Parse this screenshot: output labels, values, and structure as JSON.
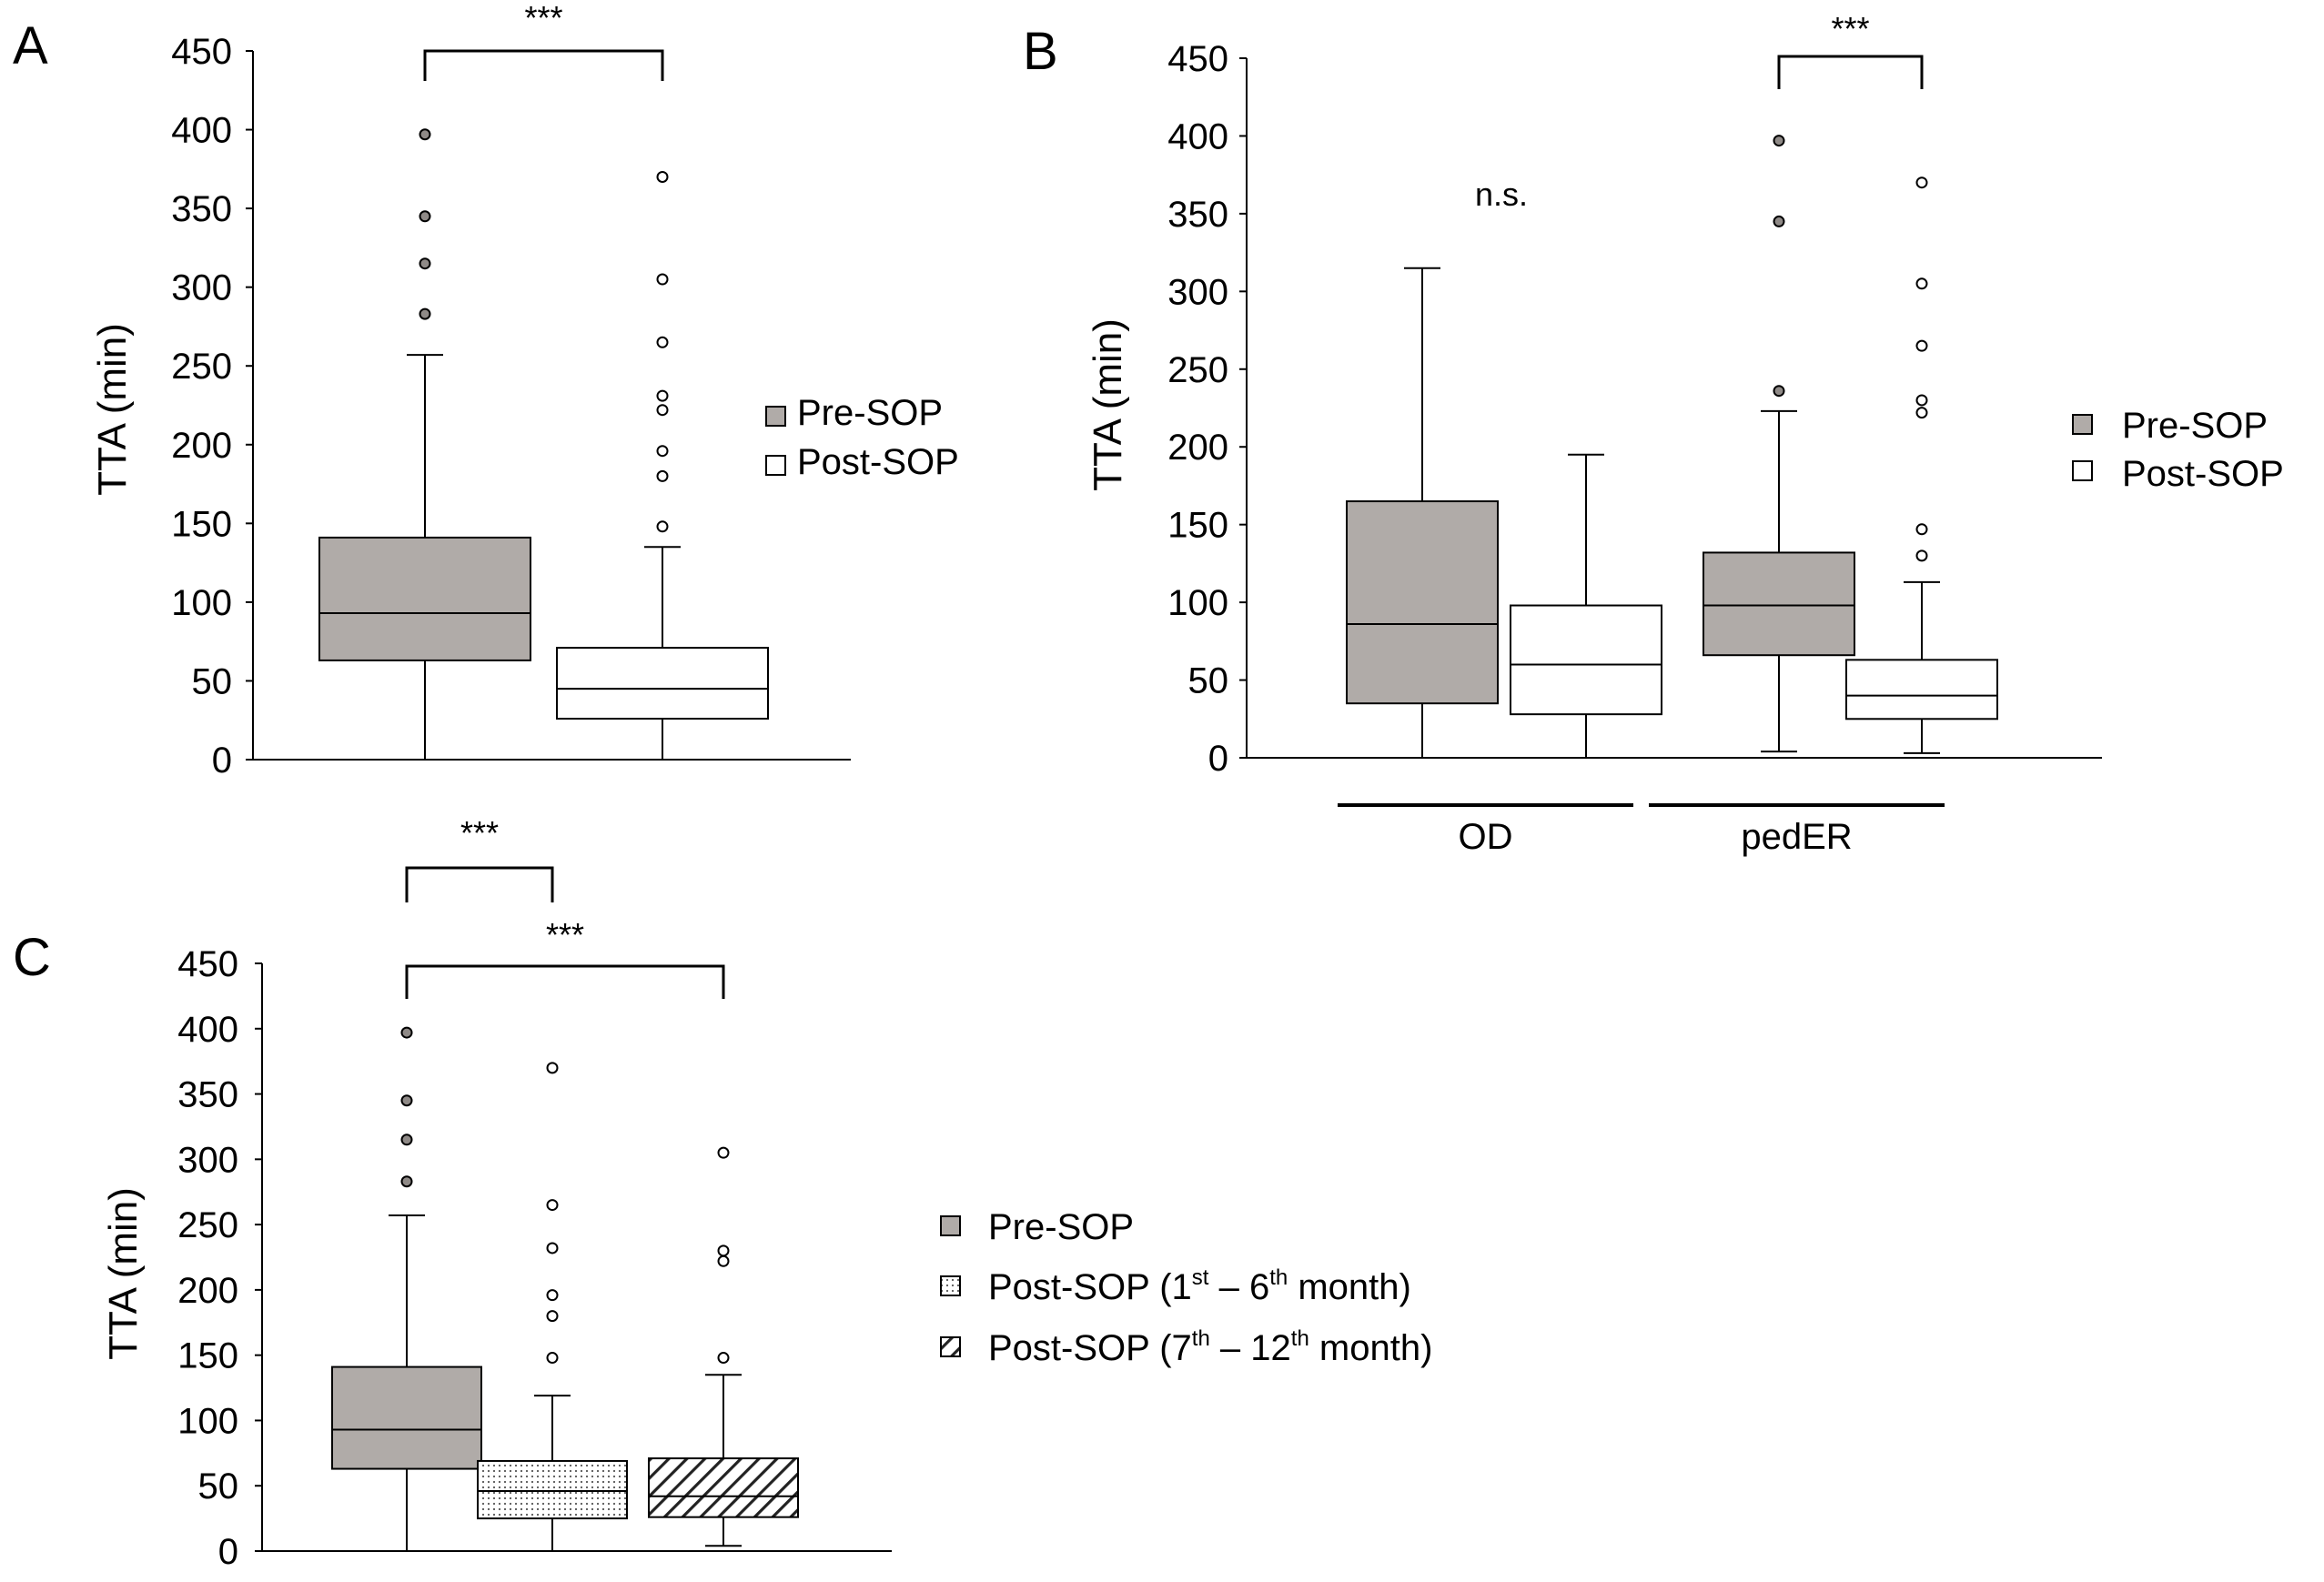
{
  "figure": {
    "colors": {
      "pre": "#b0aba8",
      "post": "#ffffff",
      "stroke": "#000000"
    },
    "legend_ab": {
      "pre": "Pre-SOP",
      "post": "Post-SOP"
    },
    "legend_c": {
      "pre": "Pre-SOP",
      "post1_main": "Post-SOP (1",
      "post1_sup": "st",
      "post1_mid": " – 6",
      "post1_sup2": "th",
      "post1_end": " month)",
      "post2_main": "Post-SOP (7",
      "post2_sup": "th",
      "post2_mid": " – 12",
      "post2_sup2": "th",
      "post2_end": " month)"
    }
  },
  "chart_data": [
    {
      "type": "box",
      "panel_label": "A",
      "ylabel": "TTA (min)",
      "ylim": [
        0,
        450
      ],
      "yticks": [
        0,
        50,
        100,
        150,
        200,
        250,
        300,
        350,
        400,
        450
      ],
      "series": [
        {
          "name": "Pre-SOP",
          "min": 0,
          "q1": 63,
          "median": 93,
          "q3": 141,
          "max": 257,
          "outliers": [
            283,
            315,
            345,
            397
          ]
        },
        {
          "name": "Post-SOP",
          "min": 0,
          "q1": 26,
          "median": 45,
          "q3": 71,
          "max": 135,
          "outliers": [
            148,
            180,
            196,
            222,
            231,
            265,
            305,
            370
          ]
        }
      ],
      "annotations": [
        {
          "text": "***",
          "from": 0,
          "to": 1
        }
      ]
    },
    {
      "type": "box",
      "panel_label": "B",
      "ylabel": "TTA (min)",
      "ylim": [
        0,
        450
      ],
      "yticks": [
        0,
        50,
        100,
        150,
        200,
        250,
        300,
        350,
        400,
        450
      ],
      "groups": [
        "OD",
        "pedER"
      ],
      "series": [
        {
          "name": "Pre-SOP",
          "group": "OD",
          "min": 0,
          "q1": 35,
          "median": 86,
          "q3": 165,
          "max": 315,
          "outliers": []
        },
        {
          "name": "Post-SOP",
          "group": "OD",
          "min": 0,
          "q1": 28,
          "median": 60,
          "q3": 98,
          "max": 195,
          "outliers": []
        },
        {
          "name": "Pre-SOP",
          "group": "pedER",
          "min": 4,
          "q1": 66,
          "median": 98,
          "q3": 132,
          "max": 223,
          "outliers": [
            236,
            345,
            397
          ]
        },
        {
          "name": "Post-SOP",
          "group": "pedER",
          "min": 3,
          "q1": 25,
          "median": 40,
          "q3": 63,
          "max": 113,
          "outliers": [
            130,
            147,
            222,
            230,
            265,
            305,
            370
          ]
        }
      ],
      "annotations": [
        {
          "text": "n.s.",
          "from": 0,
          "to": 1,
          "bracket": false
        },
        {
          "text": "***",
          "from": 2,
          "to": 3,
          "bracket": true
        }
      ]
    },
    {
      "type": "box",
      "panel_label": "C",
      "ylabel": "TTA (min)",
      "ylim": [
        0,
        450
      ],
      "yticks": [
        0,
        50,
        100,
        150,
        200,
        250,
        300,
        350,
        400,
        450
      ],
      "series": [
        {
          "name": "Pre-SOP",
          "fill": "solid",
          "min": 0,
          "q1": 63,
          "median": 93,
          "q3": 141,
          "max": 257,
          "outliers": [
            283,
            315,
            345,
            397
          ]
        },
        {
          "name": "Post-SOP (1st – 6th month)",
          "fill": "dotted",
          "min": 0,
          "q1": 25,
          "median": 46,
          "q3": 69,
          "max": 119,
          "outliers": [
            148,
            180,
            196,
            232,
            265,
            370
          ]
        },
        {
          "name": "Post-SOP (7th – 12th month)",
          "fill": "hatched",
          "min": 4,
          "q1": 26,
          "median": 42,
          "q3": 71,
          "max": 135,
          "outliers": [
            148,
            222,
            230,
            305
          ]
        }
      ],
      "annotations": [
        {
          "text": "***",
          "from": 0,
          "to": 1
        },
        {
          "text": "***",
          "from": 0,
          "to": 2
        }
      ]
    }
  ]
}
